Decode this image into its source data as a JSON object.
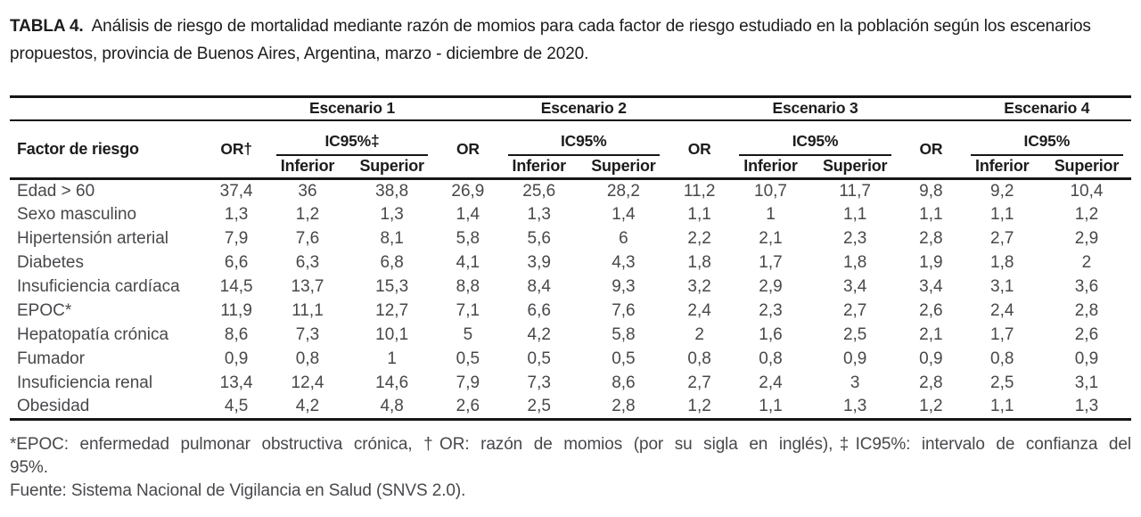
{
  "caption": {
    "label": "TABLA 4.",
    "text": "Análisis de riesgo de mortalidad mediante razón de momios para cada factor de riesgo estudiado en la población según los escenarios propuestos, provincia de Buenos Aires, Argentina, marzo - diciembre de 2020."
  },
  "table": {
    "scenarios": [
      "Escenario 1",
      "Escenario 2",
      "Escenario 3",
      "Escenario 4"
    ],
    "headers": {
      "factor": "Factor de riesgo",
      "or_first": "OR†",
      "or": "OR",
      "ic_first": "IC95%‡",
      "ic": "IC95%",
      "lower": "Inferior",
      "upper": "Superior"
    },
    "rows": [
      {
        "factor": "Edad > 60",
        "values": [
          "37,4",
          "36",
          "38,8",
          "26,9",
          "25,6",
          "28,2",
          "11,2",
          "10,7",
          "11,7",
          "9,8",
          "9,2",
          "10,4"
        ]
      },
      {
        "factor": "Sexo masculino",
        "values": [
          "1,3",
          "1,2",
          "1,3",
          "1,4",
          "1,3",
          "1,4",
          "1,1",
          "1",
          "1,1",
          "1,1",
          "1,1",
          "1,2"
        ]
      },
      {
        "factor": "Hipertensión arterial",
        "values": [
          "7,9",
          "7,6",
          "8,1",
          "5,8",
          "5,6",
          "6",
          "2,2",
          "2,1",
          "2,3",
          "2,8",
          "2,7",
          "2,9"
        ]
      },
      {
        "factor": "Diabetes",
        "values": [
          "6,6",
          "6,3",
          "6,8",
          "4,1",
          "3,9",
          "4,3",
          "1,8",
          "1,7",
          "1,8",
          "1,9",
          "1,8",
          "2"
        ]
      },
      {
        "factor": "Insuficiencia cardíaca",
        "values": [
          "14,5",
          "13,7",
          "15,3",
          "8,8",
          "8,4",
          "9,3",
          "3,2",
          "2,9",
          "3,4",
          "3,4",
          "3,1",
          "3,6"
        ]
      },
      {
        "factor": "EPOC*",
        "values": [
          "11,9",
          "11,1",
          "12,7",
          "7,1",
          "6,6",
          "7,6",
          "2,4",
          "2,3",
          "2,7",
          "2,6",
          "2,4",
          "2,8"
        ]
      },
      {
        "factor": "Hepatopatía crónica",
        "values": [
          "8,6",
          "7,3",
          "10,1",
          "5",
          "4,2",
          "5,8",
          "2",
          "1,6",
          "2,5",
          "2,1",
          "1,7",
          "2,6"
        ]
      },
      {
        "factor": "Fumador",
        "values": [
          "0,9",
          "0,8",
          "1",
          "0,5",
          "0,5",
          "0,5",
          "0,8",
          "0,8",
          "0,9",
          "0,9",
          "0,8",
          "0,9"
        ]
      },
      {
        "factor": "Insuficiencia renal",
        "values": [
          "13,4",
          "12,4",
          "14,6",
          "7,9",
          "7,3",
          "8,6",
          "2,7",
          "2,4",
          "3",
          "2,8",
          "2,5",
          "3,1"
        ]
      },
      {
        "factor": "Obesidad",
        "values": [
          "4,5",
          "4,2",
          "4,8",
          "2,6",
          "2,5",
          "2,8",
          "1,2",
          "1,1",
          "1,3",
          "1,2",
          "1,1",
          "1,3"
        ]
      }
    ]
  },
  "footnotes": {
    "abbrev_line1": "*EPOC: enfermedad pulmonar obstructiva crónica, †OR: razón de momios (por su sigla en inglés),‡IC95%: intervalo de confianza del",
    "abbrev_line2": "95%.",
    "source": "Fuente: Sistema Nacional de Vigilancia en Salud (SNVS 2.0)."
  },
  "colors": {
    "heading_text": "#1c1c1e",
    "body_text": "#48484c",
    "rule": "#161616",
    "background": "#ffffff"
  }
}
